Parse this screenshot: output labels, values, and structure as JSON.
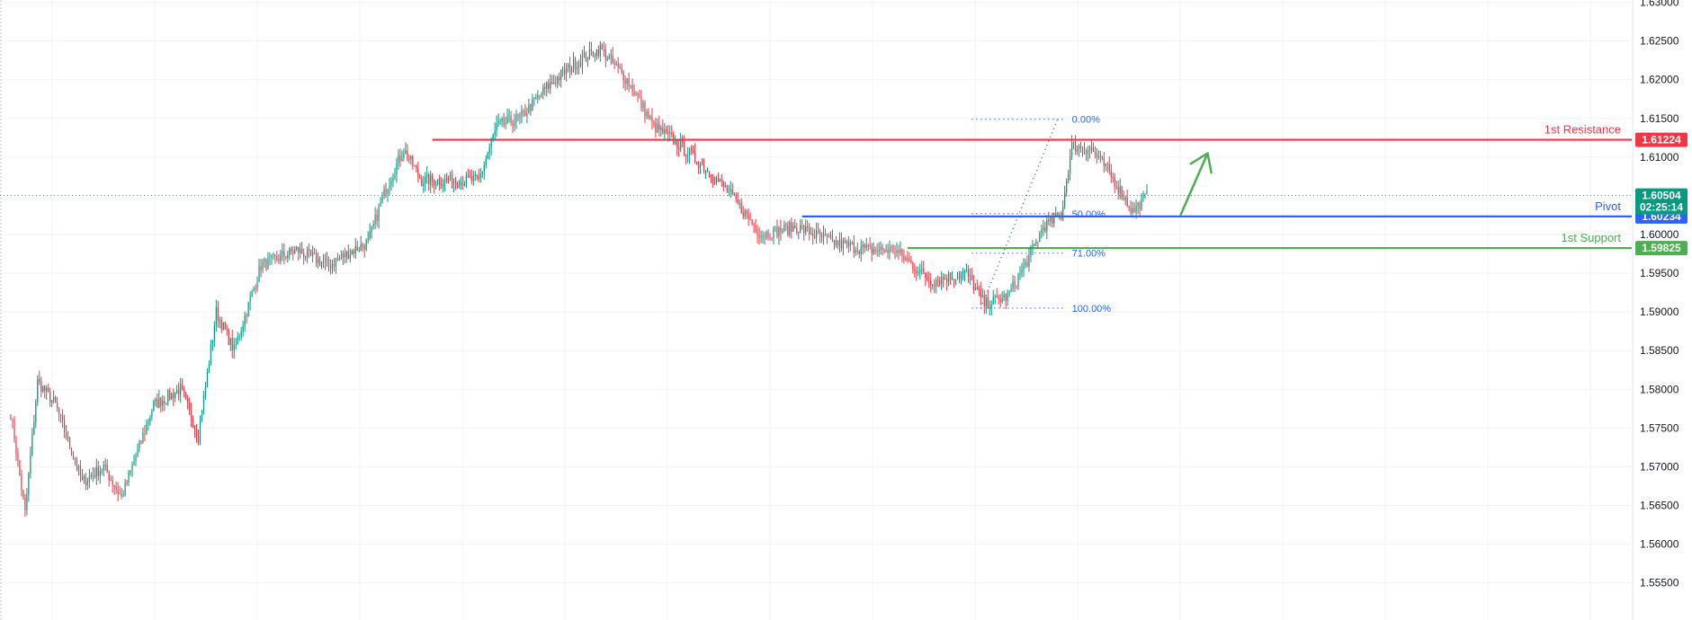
{
  "chart_data": {
    "type": "candlestick",
    "y_axis": {
      "min": 1.5502,
      "max": 1.6303,
      "ticks": [
        {
          "value": 1.63,
          "label": "1.63000"
        },
        {
          "value": 1.625,
          "label": "1.62500"
        },
        {
          "value": 1.62,
          "label": "1.62000"
        },
        {
          "value": 1.615,
          "label": "1.61500"
        },
        {
          "value": 1.61,
          "label": "1.61000"
        },
        {
          "value": 1.6,
          "label": "1.60000"
        },
        {
          "value": 1.595,
          "label": "1.59500"
        },
        {
          "value": 1.59,
          "label": "1.59000"
        },
        {
          "value": 1.585,
          "label": "1.58500"
        },
        {
          "value": 1.58,
          "label": "1.58000"
        },
        {
          "value": 1.575,
          "label": "1.57500"
        },
        {
          "value": 1.57,
          "label": "1.57000"
        },
        {
          "value": 1.565,
          "label": "1.56500"
        },
        {
          "value": 1.56,
          "label": "1.56000"
        },
        {
          "value": 1.555,
          "label": "1.55500"
        }
      ]
    },
    "grid": true,
    "anchors": [
      [
        0,
        1.577
      ],
      [
        8,
        1.564
      ],
      [
        15,
        1.581
      ],
      [
        25,
        1.578
      ],
      [
        40,
        1.568
      ],
      [
        52,
        1.57
      ],
      [
        62,
        1.566
      ],
      [
        80,
        1.578
      ],
      [
        95,
        1.58
      ],
      [
        105,
        1.574
      ],
      [
        115,
        1.59
      ],
      [
        125,
        1.585
      ],
      [
        140,
        1.596
      ],
      [
        160,
        1.598
      ],
      [
        178,
        1.596
      ],
      [
        192,
        1.598
      ],
      [
        200,
        1.599
      ],
      [
        210,
        1.606
      ],
      [
        220,
        1.611
      ],
      [
        230,
        1.607
      ],
      [
        245,
        1.607
      ],
      [
        262,
        1.607
      ],
      [
        272,
        1.614
      ],
      [
        285,
        1.615
      ],
      [
        300,
        1.619
      ],
      [
        315,
        1.622
      ],
      [
        330,
        1.624
      ],
      [
        345,
        1.62
      ],
      [
        360,
        1.614
      ],
      [
        372,
        1.612
      ],
      [
        382,
        1.61
      ],
      [
        400,
        1.606
      ],
      [
        420,
        1.6
      ],
      [
        440,
        1.601
      ],
      [
        460,
        1.599
      ],
      [
        480,
        1.598
      ],
      [
        495,
        1.598
      ],
      [
        505,
        1.596
      ],
      [
        515,
        1.594
      ],
      [
        535,
        1.595
      ],
      [
        545,
        1.591
      ],
      [
        558,
        1.592
      ],
      [
        570,
        1.597
      ],
      [
        578,
        1.601
      ],
      [
        588,
        1.6025
      ],
      [
        594,
        1.6115
      ],
      [
        605,
        1.611
      ],
      [
        615,
        1.608
      ],
      [
        628,
        1.603
      ],
      [
        636,
        1.605
      ]
    ],
    "candle_count": 637,
    "seed": 7,
    "current_price": {
      "value": 1.60504,
      "label": "1.60504",
      "countdown": "02:25:14",
      "color": "#089981"
    },
    "levels": [
      {
        "name": "1st Resistance",
        "label": "1.61224",
        "value": 1.61224,
        "color": "#f23645",
        "start": 236
      },
      {
        "name": "Pivot",
        "label": "1.60234",
        "value": 1.60234,
        "color": "#2962ff",
        "start": 443
      },
      {
        "name": "1st Support",
        "label": "1.59825",
        "value": 1.59825,
        "color": "#4caf50",
        "start": 502
      }
    ],
    "fib": {
      "color": "#2962ff",
      "start": 538,
      "end": 589,
      "line_from": [
        543,
        1.5905
      ],
      "line_to": [
        586,
        1.6149
      ],
      "levels": [
        {
          "label": "0.00%",
          "value": 1.6149
        },
        {
          "label": "50.00%",
          "value": 1.6027
        },
        {
          "label": "71.00%",
          "value": 1.5976
        },
        {
          "label": "100.00%",
          "value": 1.5905
        }
      ]
    },
    "arrow": {
      "color": "#4caf50",
      "from": [
        655,
        1.6026
      ],
      "to": [
        670,
        1.6105
      ]
    },
    "up_color": "#089981",
    "down_color": "#f23645"
  }
}
